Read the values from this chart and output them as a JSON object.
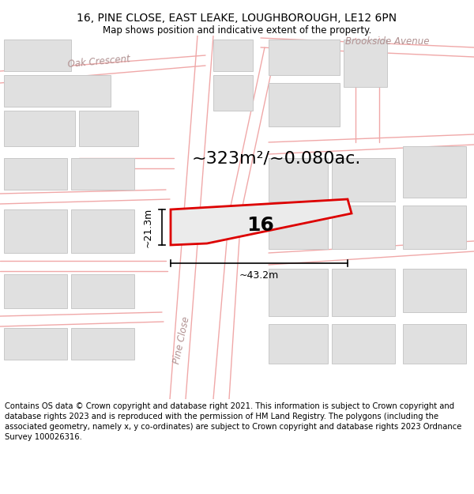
{
  "title_line1": "16, PINE CLOSE, EAST LEAKE, LOUGHBOROUGH, LE12 6PN",
  "title_line2": "Map shows position and indicative extent of the property.",
  "area_text": "~323m²/~0.080ac.",
  "width_label": "~43.2m",
  "height_label": "~21.3m",
  "plot_number": "16",
  "footer_text": "Contains OS data © Crown copyright and database right 2021. This information is subject to Crown copyright and database rights 2023 and is reproduced with the permission of HM Land Registry. The polygons (including the associated geometry, namely x, y co-ordinates) are subject to Crown copyright and database rights 2023 Ordnance Survey 100026316.",
  "road_color": "#f0a8a8",
  "plot_outline_color": "#dd0000",
  "building_fill": "#e0e0e0",
  "building_edge": "#c8c8c8",
  "street_color": "#c0a0a0",
  "title_fontsize": 10,
  "subtitle_fontsize": 8.5,
  "area_fontsize": 16,
  "plot_label_fontsize": 18,
  "footer_fontsize": 7.2
}
